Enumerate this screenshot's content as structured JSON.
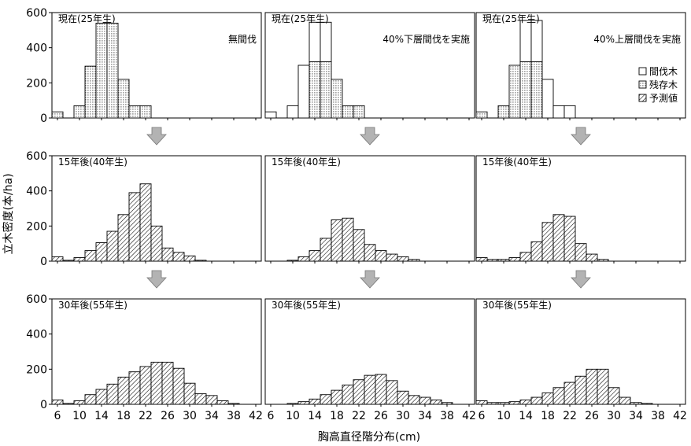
{
  "figure": {
    "xlabel": "胸高直径階分布(cm)",
    "ylabel": "立木密度(本/ha)"
  },
  "legend": [
    {
      "label": "間伐木",
      "fill": "white"
    },
    {
      "label": "残存木",
      "fill": "dots"
    },
    {
      "label": "予測値",
      "fill": "hatch"
    }
  ],
  "x_ticks": [
    6,
    10,
    14,
    18,
    22,
    26,
    30,
    34,
    38,
    42
  ],
  "y_ticks": [
    0,
    200,
    400,
    600
  ],
  "chart_data": [
    {
      "type": "bar",
      "row": 0,
      "col": 0,
      "title": "現在(25年生)",
      "note": "無間伐",
      "ylim": [
        0,
        600
      ],
      "x": [
        6,
        8,
        10,
        12,
        14,
        16,
        18,
        20,
        22
      ],
      "series": [
        {
          "fill": "dots",
          "values": [
            35,
            0,
            70,
            295,
            540,
            540,
            220,
            70,
            70
          ]
        }
      ]
    },
    {
      "type": "bar",
      "row": 0,
      "col": 1,
      "title": "現在(25年生)",
      "note": "40%下層間伐を実施",
      "ylim": [
        0,
        600
      ],
      "x": [
        6,
        8,
        10,
        12,
        14,
        16,
        18,
        20,
        22
      ],
      "series": [
        {
          "fill": "dots",
          "values": [
            0,
            0,
            0,
            0,
            320,
            320,
            220,
            70,
            70
          ]
        },
        {
          "fill": "white",
          "values": [
            35,
            0,
            70,
            300,
            225,
            225,
            0,
            0,
            0
          ]
        }
      ]
    },
    {
      "type": "bar",
      "row": 0,
      "col": 2,
      "title": "現在(25年生)",
      "note": "40%上層間伐を実施",
      "ylim": [
        0,
        600
      ],
      "x": [
        6,
        8,
        10,
        12,
        14,
        16,
        18,
        20,
        22
      ],
      "series": [
        {
          "fill": "dots",
          "values": [
            35,
            0,
            70,
            300,
            320,
            320,
            0,
            0,
            0
          ]
        },
        {
          "fill": "white",
          "values": [
            0,
            0,
            0,
            0,
            235,
            235,
            220,
            70,
            70
          ]
        }
      ]
    },
    {
      "type": "bar",
      "row": 1,
      "col": 0,
      "title": "15年後(40年生)",
      "ylim": [
        0,
        600
      ],
      "x": [
        6,
        8,
        10,
        12,
        14,
        16,
        18,
        20,
        22,
        24,
        26,
        28,
        30,
        32
      ],
      "series": [
        {
          "fill": "hatch",
          "values": [
            25,
            5,
            20,
            60,
            105,
            170,
            265,
            390,
            440,
            200,
            75,
            50,
            30,
            5
          ]
        }
      ]
    },
    {
      "type": "bar",
      "row": 1,
      "col": 1,
      "title": "15年後(40年生)",
      "ylim": [
        0,
        600
      ],
      "x": [
        6,
        8,
        10,
        12,
        14,
        16,
        18,
        20,
        22,
        24,
        26,
        28,
        30,
        32
      ],
      "series": [
        {
          "fill": "hatch",
          "values": [
            0,
            0,
            5,
            25,
            60,
            130,
            235,
            245,
            180,
            95,
            60,
            40,
            25,
            10
          ]
        }
      ]
    },
    {
      "type": "bar",
      "row": 1,
      "col": 2,
      "title": "15年後(40年生)",
      "ylim": [
        0,
        600
      ],
      "x": [
        6,
        8,
        10,
        12,
        14,
        16,
        18,
        20,
        22,
        24,
        26,
        28,
        30,
        32
      ],
      "series": [
        {
          "fill": "hatch",
          "values": [
            20,
            10,
            10,
            20,
            50,
            110,
            220,
            265,
            255,
            100,
            40,
            10,
            0,
            0
          ]
        }
      ]
    },
    {
      "type": "bar",
      "row": 2,
      "col": 0,
      "title": "30年後(55年生)",
      "ylim": [
        0,
        600
      ],
      "x": [
        6,
        8,
        10,
        12,
        14,
        16,
        18,
        20,
        22,
        24,
        26,
        28,
        30,
        32,
        34,
        36,
        38
      ],
      "series": [
        {
          "fill": "hatch",
          "values": [
            25,
            5,
            20,
            55,
            85,
            115,
            155,
            185,
            215,
            240,
            240,
            205,
            120,
            60,
            50,
            20,
            5
          ]
        }
      ]
    },
    {
      "type": "bar",
      "row": 2,
      "col": 1,
      "title": "30年後(55年生)",
      "ylim": [
        0,
        600
      ],
      "x": [
        6,
        8,
        10,
        12,
        14,
        16,
        18,
        20,
        22,
        24,
        26,
        28,
        30,
        32,
        34,
        36,
        38
      ],
      "series": [
        {
          "fill": "hatch",
          "values": [
            0,
            0,
            5,
            15,
            30,
            55,
            80,
            110,
            140,
            165,
            170,
            135,
            75,
            50,
            40,
            25,
            10
          ]
        }
      ]
    },
    {
      "type": "bar",
      "row": 2,
      "col": 2,
      "title": "30年後(55年生)",
      "ylim": [
        0,
        600
      ],
      "x": [
        6,
        8,
        10,
        12,
        14,
        16,
        18,
        20,
        22,
        24,
        26,
        28,
        30,
        32,
        34,
        36,
        38
      ],
      "series": [
        {
          "fill": "hatch",
          "values": [
            20,
            10,
            10,
            15,
            25,
            40,
            65,
            95,
            125,
            160,
            200,
            200,
            95,
            40,
            10,
            5,
            0
          ]
        }
      ]
    }
  ]
}
